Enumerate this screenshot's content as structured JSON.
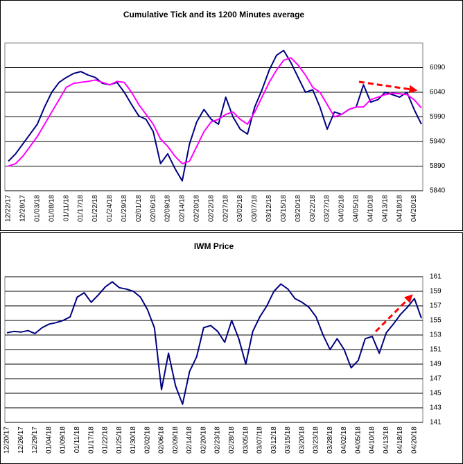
{
  "chart_data": [
    {
      "type": "line",
      "title": "Cumulative Tick and its 1200 Minutes average",
      "categories": [
        "12/22/17",
        null,
        "12/28/17",
        null,
        "01/03/18",
        null,
        "01/08/18",
        null,
        "01/11/18",
        null,
        "01/17/18",
        null,
        "01/22/18",
        null,
        "01/24/18",
        null,
        "01/29/18",
        null,
        "02/01/18",
        null,
        "02/06/18",
        null,
        "02/09/18",
        null,
        "02/14/18",
        null,
        "02/20/18",
        null,
        "02/22/18",
        null,
        "02/27/18",
        null,
        "03/02/18",
        null,
        "03/07/18",
        null,
        "03/12/18",
        null,
        "03/15/18",
        null,
        "03/20/18",
        null,
        "03/22/18",
        null,
        "03/27/18",
        null,
        "04/02/18",
        null,
        "04/05/18",
        null,
        "04/10/18",
        null,
        "04/13/18",
        null,
        "04/18/18",
        null,
        "04/20/18",
        null
      ],
      "series": [
        {
          "color": "#000080",
          "values": [
            5900,
            5915,
            5935,
            5955,
            5975,
            6010,
            6040,
            6060,
            6070,
            6078,
            6082,
            6075,
            6070,
            6058,
            6055,
            6060,
            6040,
            6015,
            5992,
            5985,
            5960,
            5895,
            5915,
            5885,
            5860,
            5935,
            5980,
            6005,
            5985,
            5975,
            6030,
            5990,
            5965,
            5955,
            6010,
            6045,
            6085,
            6115,
            6125,
            6100,
            6070,
            6040,
            6045,
            6010,
            5965,
            6000,
            5995,
            6005,
            6010,
            6055,
            6020,
            6025,
            6040,
            6035,
            6030,
            6040,
            6005,
            5975
          ]
        },
        {
          "color": "#ff00ff",
          "values": [
            5890,
            5895,
            5910,
            5930,
            5950,
            5975,
            6000,
            6025,
            6050,
            6058,
            6060,
            6062,
            6065,
            6060,
            6055,
            6062,
            6060,
            6040,
            6015,
            5995,
            5975,
            5945,
            5930,
            5910,
            5895,
            5900,
            5930,
            5960,
            5980,
            5985,
            5995,
            6000,
            5985,
            5975,
            6000,
            6030,
            6060,
            6085,
            6105,
            6110,
            6095,
            6075,
            6050,
            6040,
            6015,
            5990,
            5995,
            6005,
            6010,
            6010,
            6025,
            6030,
            6035,
            6038,
            6037,
            6035,
            6025,
            6008
          ]
        }
      ],
      "ylim": [
        5840,
        6140
      ],
      "yticks": [
        5840,
        5890,
        5940,
        5990,
        6040,
        6090
      ],
      "grid": true
    },
    {
      "type": "line",
      "title": "IWM Price",
      "categories": [
        "12/20/17",
        null,
        "12/26/17",
        null,
        "12/29/17",
        null,
        "01/04/18",
        null,
        "01/09/18",
        null,
        "01/11/18",
        null,
        "01/17/18",
        null,
        "01/22/18",
        null,
        "01/25/18",
        null,
        "01/30/18",
        null,
        "02/02/18",
        null,
        "02/06/18",
        null,
        "02/09/18",
        null,
        "02/14/18",
        null,
        "02/20/18",
        null,
        "02/23/18",
        null,
        "02/28/18",
        null,
        "03/05/18",
        null,
        "03/07/18",
        null,
        "03/12/18",
        null,
        "03/15/18",
        null,
        "03/20/18",
        null,
        "03/23/18",
        null,
        "03/28/18",
        null,
        "04/02/18",
        null,
        "04/05/18",
        null,
        "04/10/18",
        null,
        "04/13/18",
        null,
        "04/18/18",
        null,
        "04/20/18",
        null
      ],
      "series": [
        {
          "color": "#000080",
          "values": [
            153.3,
            153.5,
            153.4,
            153.6,
            153.2,
            154.0,
            154.5,
            154.7,
            155.0,
            155.5,
            158.2,
            158.8,
            157.5,
            158.5,
            159.6,
            160.3,
            159.5,
            159.3,
            159.0,
            158.2,
            156.5,
            154.0,
            145.5,
            150.5,
            146.0,
            143.5,
            148.0,
            150.0,
            154.0,
            154.3,
            153.5,
            152.0,
            155.0,
            152.5,
            149.0,
            153.5,
            155.5,
            157.0,
            159.0,
            160.0,
            159.3,
            158.0,
            157.5,
            156.8,
            155.5,
            153.0,
            151.0,
            152.5,
            151.0,
            148.5,
            149.5,
            152.5,
            152.8,
            150.5,
            153.3,
            154.5,
            155.8,
            156.8,
            158.0,
            155.3
          ]
        }
      ],
      "ylim": [
        141,
        161
      ],
      "yticks": [
        141,
        143,
        145,
        147,
        149,
        151,
        153,
        155,
        157,
        159,
        161
      ],
      "grid": true
    }
  ]
}
